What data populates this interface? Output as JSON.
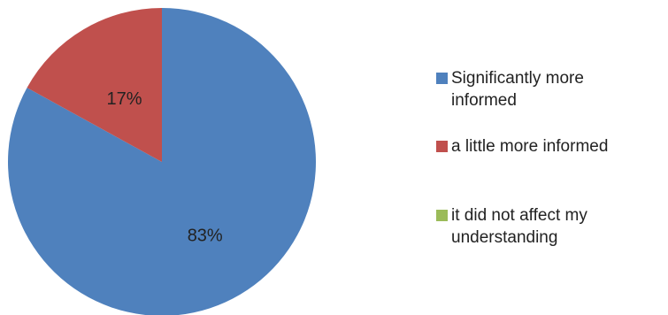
{
  "chart_data": {
    "type": "pie",
    "categories": [
      "Significantly more informed",
      "a little more informed",
      "it did not affect my understanding"
    ],
    "values": [
      83,
      17,
      0
    ],
    "value_labels": [
      "83%",
      "17%",
      ""
    ],
    "colors": [
      "#4f81bd",
      "#c0504d",
      "#9bbb59"
    ],
    "start_angle_deg": 0,
    "direction": "clockwise",
    "legend_position": "right",
    "title": ""
  },
  "legend": [
    {
      "label": "Significantly more informed",
      "color": "#4f81bd"
    },
    {
      "label": "a little more informed",
      "color": "#c0504d"
    },
    {
      "label": "it did not affect my understanding",
      "color": "#9bbb59"
    }
  ]
}
